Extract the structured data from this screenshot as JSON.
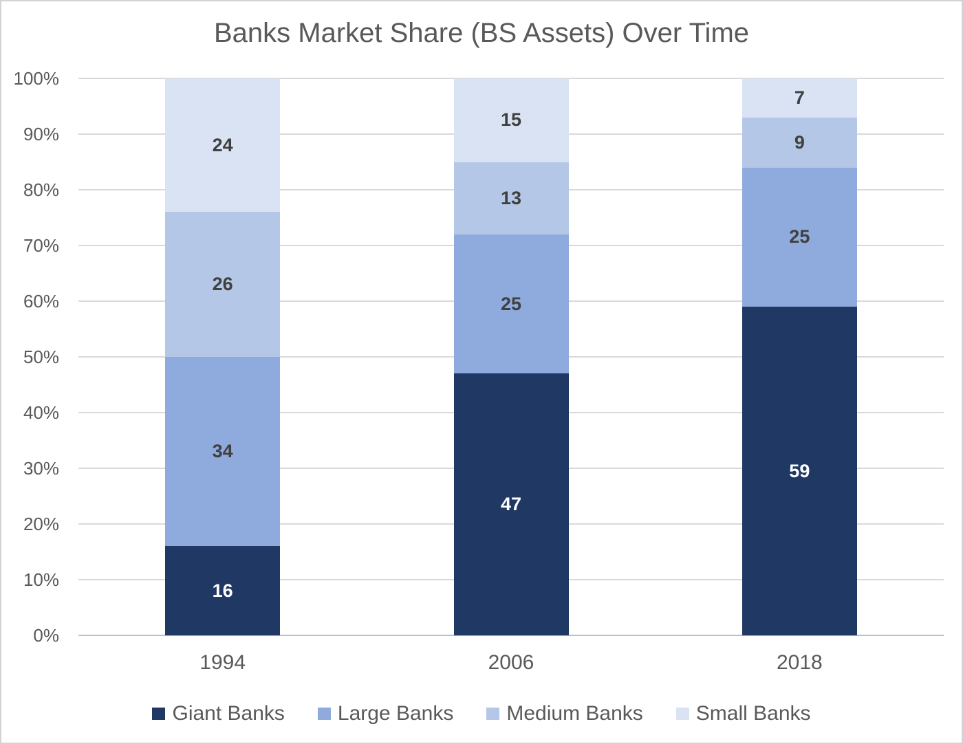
{
  "chart_data": {
    "type": "bar",
    "stacked": true,
    "title": "Banks Market Share (BS Assets) Over Time",
    "categories": [
      "1994",
      "2006",
      "2018"
    ],
    "series": [
      {
        "name": "Giant Banks",
        "color": "#1f3864",
        "label_color": "#ffffff",
        "values": [
          16,
          47,
          59
        ]
      },
      {
        "name": "Large Banks",
        "color": "#8faadc",
        "label_color": "#404040",
        "values": [
          34,
          25,
          25
        ]
      },
      {
        "name": "Medium Banks",
        "color": "#b4c7e7",
        "label_color": "#404040",
        "values": [
          26,
          13,
          9
        ]
      },
      {
        "name": "Small Banks",
        "color": "#dae3f3",
        "label_color": "#404040",
        "values": [
          24,
          15,
          7
        ]
      }
    ],
    "xlabel": "",
    "ylabel": "",
    "ylim": [
      0,
      100
    ],
    "y_ticks": [
      "0%",
      "10%",
      "20%",
      "30%",
      "40%",
      "50%",
      "60%",
      "70%",
      "80%",
      "90%",
      "100%"
    ],
    "grid": true,
    "data_labels": true,
    "legend_position": "bottom"
  },
  "style": {
    "text_color": "#595959",
    "gridline_color": "#d9d9d9",
    "axis_line_color": "#bfbfbf",
    "border_color": "#d2d2d2",
    "background": "#ffffff"
  }
}
